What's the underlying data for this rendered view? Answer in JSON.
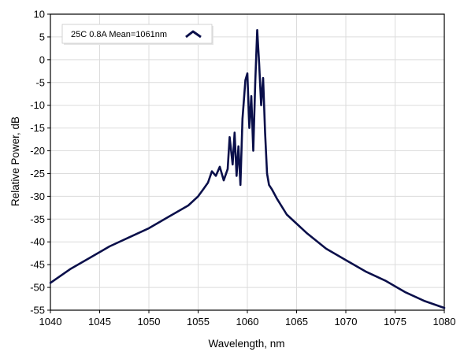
{
  "chart_data": {
    "type": "line",
    "title": "",
    "xlabel": "Wavelength, nm",
    "ylabel": "Relative Power, dB",
    "xlim": [
      1040,
      1080
    ],
    "ylim": [
      -55,
      10
    ],
    "xticks": [
      1040,
      1045,
      1050,
      1055,
      1060,
      1065,
      1070,
      1075,
      1080
    ],
    "yticks": [
      10,
      5,
      0,
      -5,
      -10,
      -15,
      -20,
      -25,
      -30,
      -35,
      -40,
      -45,
      -50,
      -55
    ],
    "grid": true,
    "legend_position": "top-left",
    "series": [
      {
        "name": "25C 0.8A Mean=1061nm",
        "color": "#0a0f4a",
        "x": [
          1040,
          1042,
          1044,
          1046,
          1048,
          1050,
          1052,
          1054,
          1055,
          1055.5,
          1056,
          1056.4,
          1056.8,
          1057.2,
          1057.6,
          1058,
          1058.2,
          1058.5,
          1058.7,
          1058.9,
          1059.1,
          1059.3,
          1059.5,
          1059.8,
          1060,
          1060.2,
          1060.4,
          1060.6,
          1060.8,
          1061,
          1061.2,
          1061.4,
          1061.6,
          1061.8,
          1062,
          1062.2,
          1062.5,
          1063,
          1064,
          1066,
          1068,
          1070,
          1072,
          1074,
          1076,
          1078,
          1080
        ],
        "y": [
          -49,
          -46,
          -43.5,
          -41,
          -39,
          -37,
          -34.5,
          -32,
          -30,
          -28.5,
          -27,
          -24.5,
          -25.5,
          -23.5,
          -26.5,
          -24,
          -17,
          -23,
          -16,
          -25.5,
          -19,
          -27.5,
          -13,
          -4.5,
          -3,
          -15,
          -8,
          -20,
          -5,
          6.5,
          -1,
          -10,
          -4,
          -16,
          -25,
          -27.5,
          -28.5,
          -30.5,
          -34,
          -38,
          -41.5,
          -44,
          -46.5,
          -48.5,
          -51,
          -53,
          -54.5
        ]
      }
    ]
  }
}
